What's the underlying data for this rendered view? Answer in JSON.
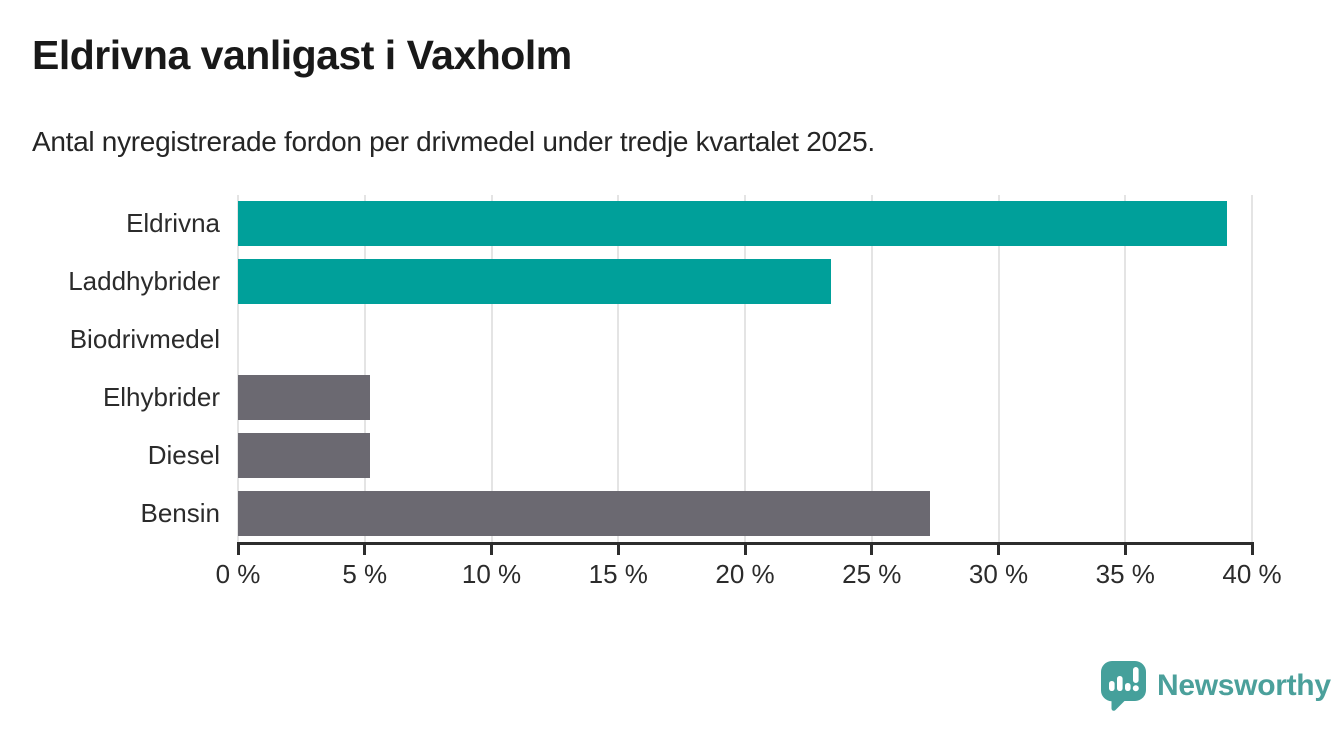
{
  "header": {
    "title": "Eldrivna vanligast i Vaxholm",
    "subtitle": "Antal nyregistrerade fordon per drivmedel under tredje kvartalet 2025."
  },
  "chart_data": {
    "type": "bar",
    "orientation": "horizontal",
    "title": "Eldrivna vanligast i Vaxholm",
    "subtitle": "Antal nyregistrerade fordon per drivmedel under tredje kvartalet 2025.",
    "categories": [
      "Eldrivna",
      "Laddhybrider",
      "Biodrivmedel",
      "Elhybrider",
      "Diesel",
      "Bensin"
    ],
    "values": [
      39.0,
      23.4,
      0,
      5.2,
      5.2,
      27.3
    ],
    "unit": "%",
    "bar_colors": [
      "#00a09a",
      "#00a09a",
      "#6b6971",
      "#6b6971",
      "#6b6971",
      "#6b6971"
    ],
    "xlabel": "",
    "ylabel": "",
    "xlim": [
      0,
      40
    ],
    "x_ticks": [
      0,
      5,
      10,
      15,
      20,
      25,
      30,
      35,
      40
    ],
    "x_tick_labels": [
      "0 %",
      "5 %",
      "10 %",
      "15 %",
      "20 %",
      "25 %",
      "30 %",
      "35 %",
      "40 %"
    ],
    "grid": "vertical-light",
    "legend": "none"
  },
  "branding": {
    "logo_text": "Newsworthy",
    "logo_icon": "speech-bubble-bar-chart-exclamation",
    "logo_text_color": "#4ba09b",
    "logo_icon_color": "#45a09b"
  },
  "colors": {
    "accent_teal": "#00a09a",
    "neutral_gray": "#6b6971",
    "gridline": "#e4e4e4",
    "axis": "#2d2d2d",
    "text_dark": "#191919",
    "text_body": "#2b2b2b",
    "background": "#ffffff"
  }
}
